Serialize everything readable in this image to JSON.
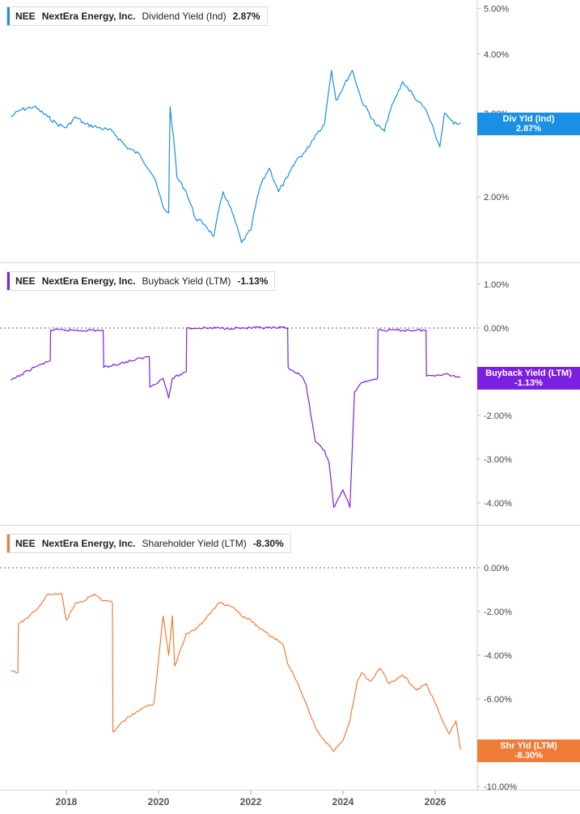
{
  "chart_data": [
    {
      "type": "line",
      "ticker": "NEE",
      "company": "NextEra Energy, Inc.",
      "metric": "Dividend Yield (Ind)",
      "current_value": "2.87%",
      "tag_label": "Div Yld (Ind)",
      "tag_value": "2.87%",
      "color": "#1a8fe3",
      "scale": "log",
      "ylim": [
        1.45,
        5.0
      ],
      "yticks": [
        2,
        3,
        4,
        5
      ],
      "ytick_labels": [
        "2.00%",
        "3.00%",
        "4.00%",
        "5.00%"
      ],
      "zero_line": false,
      "x": [
        2016.8,
        2017.0,
        2017.3,
        2017.6,
        2017.8,
        2018.0,
        2018.2,
        2018.4,
        2018.7,
        2019.0,
        2019.3,
        2019.6,
        2019.9,
        2020.1,
        2020.22,
        2020.25,
        2020.4,
        2020.6,
        2020.8,
        2021.0,
        2021.2,
        2021.4,
        2021.6,
        2021.8,
        2022.0,
        2022.2,
        2022.4,
        2022.6,
        2022.8,
        2023.0,
        2023.2,
        2023.4,
        2023.6,
        2023.75,
        2023.85,
        2024.0,
        2024.2,
        2024.4,
        2024.7,
        2024.9,
        2025.0,
        2025.3,
        2025.6,
        2025.8,
        2026.0,
        2026.1,
        2026.2,
        2026.4,
        2026.55
      ],
      "y": [
        2.95,
        3.05,
        3.1,
        2.95,
        2.85,
        2.8,
        2.95,
        2.85,
        2.8,
        2.75,
        2.55,
        2.45,
        2.2,
        1.9,
        1.85,
        3.1,
        2.2,
        2.05,
        1.8,
        1.75,
        1.65,
        2.05,
        1.85,
        1.6,
        1.7,
        2.1,
        2.3,
        2.05,
        2.2,
        2.4,
        2.5,
        2.7,
        2.85,
        3.7,
        3.2,
        3.4,
        3.7,
        3.2,
        2.85,
        2.75,
        3.0,
        3.5,
        3.2,
        3.05,
        2.7,
        2.55,
        3.0,
        2.85,
        2.87
      ]
    },
    {
      "type": "line",
      "ticker": "NEE",
      "company": "NextEra Energy, Inc.",
      "metric": "Buyback Yield (LTM)",
      "current_value": "-1.13%",
      "tag_label": "Buyback Yield (LTM)",
      "tag_value": "-1.13%",
      "color": "#7b1fe0",
      "scale": "linear",
      "ylim": [
        -4.4,
        1.3
      ],
      "yticks": [
        1,
        0,
        -2,
        -3,
        -4
      ],
      "ytick_labels": [
        "1.00%",
        "0.00%",
        "-2.00%",
        "-3.00%",
        "-4.00%"
      ],
      "zero_line": true,
      "x": [
        2016.8,
        2017.3,
        2017.65,
        2017.66,
        2018.8,
        2018.81,
        2019.4,
        2019.8,
        2019.81,
        2020.1,
        2020.22,
        2020.3,
        2020.6,
        2020.61,
        2022.8,
        2022.81,
        2023.1,
        2023.2,
        2023.4,
        2023.6,
        2023.7,
        2023.8,
        2024.0,
        2024.15,
        2024.25,
        2024.4,
        2024.75,
        2024.76,
        2025.8,
        2025.81,
        2026.2,
        2026.55
      ],
      "y": [
        -1.2,
        -0.9,
        -0.75,
        -0.05,
        -0.05,
        -0.9,
        -0.75,
        -0.65,
        -1.35,
        -1.15,
        -1.6,
        -1.15,
        -1.0,
        0.0,
        0.0,
        -0.9,
        -1.1,
        -1.3,
        -2.6,
        -2.8,
        -3.1,
        -4.1,
        -3.7,
        -4.1,
        -1.45,
        -1.25,
        -1.15,
        -0.05,
        -0.05,
        -1.1,
        -1.05,
        -1.13
      ]
    },
    {
      "type": "line",
      "ticker": "NEE",
      "company": "NextEra Energy, Inc.",
      "metric": "Shareholder Yield (LTM)",
      "current_value": "-8.30%",
      "tag_label": "Shr Yld (LTM)",
      "tag_value": "-8.30%",
      "color": "#f07c3a",
      "scale": "linear",
      "ylim": [
        -10.0,
        0.6
      ],
      "yticks": [
        0,
        -2,
        -4,
        -6,
        -8,
        -10
      ],
      "ytick_labels": [
        "0.00%",
        "-2.00%",
        "-4.00%",
        "-6.00%",
        "-8.00%",
        "-10.00%"
      ],
      "zero_line": true,
      "x": [
        2016.8,
        2016.95,
        2016.96,
        2017.2,
        2017.45,
        2017.6,
        2017.9,
        2018.0,
        2018.2,
        2018.4,
        2018.6,
        2018.8,
        2019.0,
        2019.01,
        2019.3,
        2019.6,
        2019.9,
        2020.1,
        2020.22,
        2020.3,
        2020.35,
        2020.6,
        2020.8,
        2021.0,
        2021.3,
        2021.6,
        2021.8,
        2022.0,
        2022.2,
        2022.5,
        2022.7,
        2022.8,
        2023.0,
        2023.2,
        2023.4,
        2023.6,
        2023.8,
        2024.0,
        2024.15,
        2024.3,
        2024.4,
        2024.6,
        2024.8,
        2025.0,
        2025.3,
        2025.6,
        2025.8,
        2026.0,
        2026.2,
        2026.3,
        2026.45,
        2026.55
      ],
      "y": [
        -4.7,
        -4.8,
        -2.6,
        -2.2,
        -1.7,
        -1.2,
        -1.2,
        -2.4,
        -1.6,
        -1.5,
        -1.2,
        -1.5,
        -1.6,
        -7.5,
        -6.9,
        -6.5,
        -6.2,
        -2.2,
        -4.0,
        -2.2,
        -4.5,
        -3.0,
        -2.8,
        -2.4,
        -1.6,
        -1.8,
        -2.2,
        -2.4,
        -2.8,
        -3.2,
        -3.5,
        -4.4,
        -5.2,
        -6.2,
        -7.3,
        -7.9,
        -8.4,
        -7.9,
        -7.0,
        -5.3,
        -4.8,
        -5.2,
        -4.6,
        -5.3,
        -4.9,
        -5.6,
        -5.3,
        -6.2,
        -7.2,
        -7.6,
        -7.0,
        -8.3
      ]
    }
  ],
  "x_axis": {
    "ticks": [
      2018,
      2020,
      2022,
      2024,
      2026
    ],
    "tick_labels": [
      "2018",
      "2020",
      "2022",
      "2024",
      "2026"
    ],
    "xlim": [
      2016.8,
      2026.9
    ]
  }
}
